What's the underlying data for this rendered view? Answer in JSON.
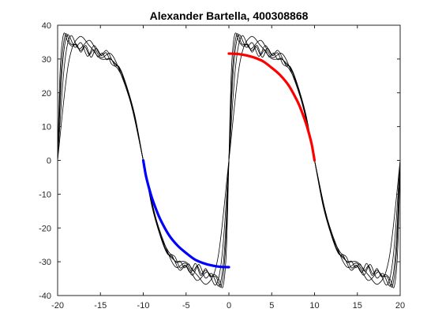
{
  "chart_data": {
    "type": "line",
    "title": "Alexander Bartella, 400308868",
    "xlabel": "",
    "ylabel": "",
    "xlim": [
      -20,
      20
    ],
    "ylim": [
      -40,
      40
    ],
    "xticks": [
      -20,
      -15,
      -10,
      -5,
      0,
      5,
      10,
      15,
      20
    ],
    "yticks": [
      -40,
      -30,
      -20,
      -10,
      0,
      10,
      20,
      30,
      40
    ],
    "grid": false,
    "legend": "none",
    "colors": {
      "axes": "#262626",
      "fourier": "#000000",
      "highlight_upper": "#ff0000",
      "highlight_lower": "#0000ff"
    },
    "series": [
      {
        "style": "black-thin",
        "harmonics": 3,
        "x": [
          -20,
          -18.75,
          -17.5,
          -16.25,
          -15,
          -13.75,
          -12.5,
          -11.25,
          -10,
          -8.75,
          -7.5,
          -6.25,
          -5,
          -3.75,
          -2.5,
          -1.25,
          0,
          1.25,
          2.5,
          3.75,
          5,
          6.25,
          7.5,
          8.75,
          10,
          11.25,
          12.5,
          13.75,
          15,
          16.25,
          17.5,
          18.75,
          20
        ],
        "y": [
          0,
          28.4,
          36.5,
          33.8,
          30.1,
          29.8,
          25.6,
          14.9,
          0,
          -14.9,
          -25.6,
          -29.8,
          -30.1,
          -33.8,
          -36.5,
          -28.4,
          0,
          28.4,
          36.5,
          33.8,
          30.1,
          29.8,
          25.6,
          14.9,
          0,
          -14.9,
          -25.6,
          -29.8,
          -30.1,
          -33.8,
          -36.5,
          -28.4,
          0
        ]
      },
      {
        "style": "black-thin",
        "harmonics": 6,
        "x": [
          -20,
          -19.25,
          -18.5,
          -17.5,
          -16.25,
          -15,
          -13.75,
          -12.5,
          -11.25,
          -10,
          -8.75,
          -7.5,
          -6.25,
          -5,
          -3.75,
          -2.5,
          -1.5,
          -0.75,
          0,
          0.75,
          1.5,
          2.5,
          3.75,
          5,
          6.25,
          7.5,
          8.75,
          10,
          11.25,
          12.5,
          13.75,
          15,
          16.25,
          17.5,
          18.5,
          19.25,
          20
        ],
        "y": [
          0,
          27,
          36.8,
          33,
          35.5,
          30.5,
          31.5,
          24.8,
          15,
          0,
          -15,
          -24.8,
          -31.5,
          -30.5,
          -35.5,
          -33,
          -36.8,
          -27,
          0,
          27,
          36.8,
          33,
          35.5,
          30.5,
          31.5,
          24.8,
          15,
          0,
          -15,
          -24.8,
          -31.5,
          -30.5,
          -35.5,
          -33,
          -36.8,
          -27,
          0
        ]
      },
      {
        "style": "black-thin",
        "harmonics": 9,
        "x": [
          -20,
          -19.5,
          -18.9,
          -18,
          -17.25,
          -16.5,
          -15.75,
          -15,
          -14.25,
          -13.5,
          -12.5,
          -11.25,
          -10,
          -8.75,
          -7.5,
          -6.5,
          -5.75,
          -5,
          -4.25,
          -3.5,
          -2.75,
          -2,
          -1.1,
          -0.5,
          0,
          0.5,
          1.1,
          2,
          2.75,
          3.5,
          4.25,
          5,
          5.75,
          6.5,
          7.5,
          8.75,
          10,
          11.25,
          12.5,
          13.5,
          14.25,
          15,
          15.75,
          16.5,
          17.25,
          18,
          18.9,
          19.5,
          20
        ],
        "y": [
          0,
          26,
          37,
          33.5,
          34.8,
          30.8,
          34,
          31.2,
          32.5,
          29,
          26,
          15,
          0,
          -15,
          -26,
          -29,
          -32.5,
          -31.2,
          -34,
          -30.8,
          -34.8,
          -33.5,
          -37,
          -26,
          0,
          26,
          37,
          33.5,
          34.8,
          30.8,
          34,
          31.2,
          32.5,
          29,
          26,
          15,
          0,
          -15,
          -26,
          -29,
          -32.5,
          -31.2,
          -34,
          -30.8,
          -34.8,
          -33.5,
          -37,
          -26,
          0
        ]
      },
      {
        "style": "black-thin",
        "harmonics": 12,
        "x": [
          -20,
          -19.6,
          -19.1,
          -18.5,
          -17.9,
          -17.3,
          -16.7,
          -16.1,
          -15.5,
          -14.9,
          -14.3,
          -13.7,
          -13,
          -12,
          -11,
          -10,
          -9,
          -8,
          -7,
          -6.3,
          -5.7,
          -5.1,
          -4.5,
          -3.9,
          -3.3,
          -2.7,
          -2.1,
          -1.5,
          -0.9,
          -0.4,
          0,
          0.4,
          0.9,
          1.5,
          2.1,
          2.7,
          3.3,
          3.9,
          4.5,
          5.1,
          5.7,
          6.3,
          7,
          8,
          9,
          10,
          11,
          12,
          13,
          13.7,
          14.3,
          14.9,
          15.5,
          16.1,
          16.7,
          17.3,
          17.9,
          18.5,
          19.1,
          19.6,
          20
        ],
        "y": [
          0,
          26,
          37.2,
          34.5,
          34.2,
          32.5,
          34,
          30.5,
          33.2,
          31,
          31.8,
          28.5,
          27.2,
          22,
          13,
          0,
          -13,
          -22,
          -27.2,
          -28.5,
          -31.8,
          -31,
          -33.2,
          -30.5,
          -34,
          -32.5,
          -34.2,
          -34.5,
          -37.2,
          -26,
          0,
          26,
          37.2,
          34.5,
          34.2,
          32.5,
          34,
          30.5,
          33.2,
          31,
          31.8,
          28.5,
          27.2,
          22,
          13,
          0,
          -13,
          -22,
          -27.2,
          -28.5,
          -31.8,
          -31,
          -33.2,
          -30.5,
          -34,
          -32.5,
          -34.2,
          -34.5,
          -37.2,
          -26,
          0
        ]
      },
      {
        "style": "black-thin",
        "harmonics": 15,
        "x": [
          -20,
          -19.7,
          -19.3,
          -18.8,
          -18.3,
          -17.8,
          -17.3,
          -16.8,
          -16.3,
          -15.8,
          -15.3,
          -14.8,
          -14.3,
          -13.8,
          -13.3,
          -12.8,
          -12,
          -11,
          -10,
          -9,
          -8,
          -7.2,
          -6.7,
          -6.2,
          -5.7,
          -5.2,
          -4.7,
          -4.2,
          -3.7,
          -3.2,
          -2.7,
          -2.2,
          -1.7,
          -1.2,
          -0.7,
          -0.3,
          0,
          0.3,
          0.7,
          1.2,
          1.7,
          2.2,
          2.7,
          3.2,
          3.7,
          4.2,
          4.7,
          5.2,
          5.7,
          6.2,
          6.7,
          7.2,
          8,
          9,
          10,
          11,
          12,
          12.8,
          13.3,
          13.8,
          14.3,
          14.8,
          15.3,
          15.8,
          16.3,
          16.8,
          17.3,
          17.8,
          18.3,
          18.8,
          19.3,
          19.7,
          20
        ],
        "y": [
          0,
          27,
          37.4,
          35,
          33.8,
          34.4,
          32,
          33.6,
          31.2,
          32.8,
          30.6,
          31.8,
          29.8,
          30.2,
          28,
          27.6,
          22.5,
          13.5,
          0,
          -13.5,
          -22.5,
          -27.6,
          -28,
          -30.2,
          -29.8,
          -31.8,
          -30.6,
          -32.8,
          -31.2,
          -33.6,
          -32,
          -34.4,
          -33.8,
          -35,
          -37.4,
          -27,
          0,
          27,
          37.4,
          35,
          33.8,
          34.4,
          32,
          33.6,
          31.2,
          32.8,
          30.6,
          31.8,
          29.8,
          30.2,
          28,
          27.6,
          22.5,
          13.5,
          0,
          -13.5,
          -22.5,
          -27.6,
          -28,
          -30.2,
          -29.8,
          -31.8,
          -30.6,
          -32.8,
          -31.2,
          -33.6,
          -32,
          -34.4,
          -33.8,
          -35,
          -37.4,
          -27,
          0
        ]
      },
      {
        "style": "red-thick",
        "x": [
          0,
          1,
          2,
          3,
          4,
          5,
          6,
          7,
          8,
          8.5,
          9,
          9.4,
          9.7,
          10
        ],
        "y": [
          31.6,
          31.5,
          31.1,
          30.4,
          29.3,
          27.4,
          25.2,
          22.1,
          17.5,
          14.5,
          11,
          7.5,
          4.4,
          0
        ]
      },
      {
        "style": "blue-thick",
        "x": [
          -10,
          -9.7,
          -9.4,
          -9,
          -8.5,
          -8,
          -7,
          -6,
          -5,
          -4,
          -3,
          -2,
          -1,
          0
        ],
        "y": [
          0,
          -4.4,
          -7.5,
          -11,
          -14.5,
          -17.5,
          -22.1,
          -25.2,
          -27.4,
          -29.3,
          -30.4,
          -31.1,
          -31.5,
          -31.6
        ]
      }
    ]
  }
}
